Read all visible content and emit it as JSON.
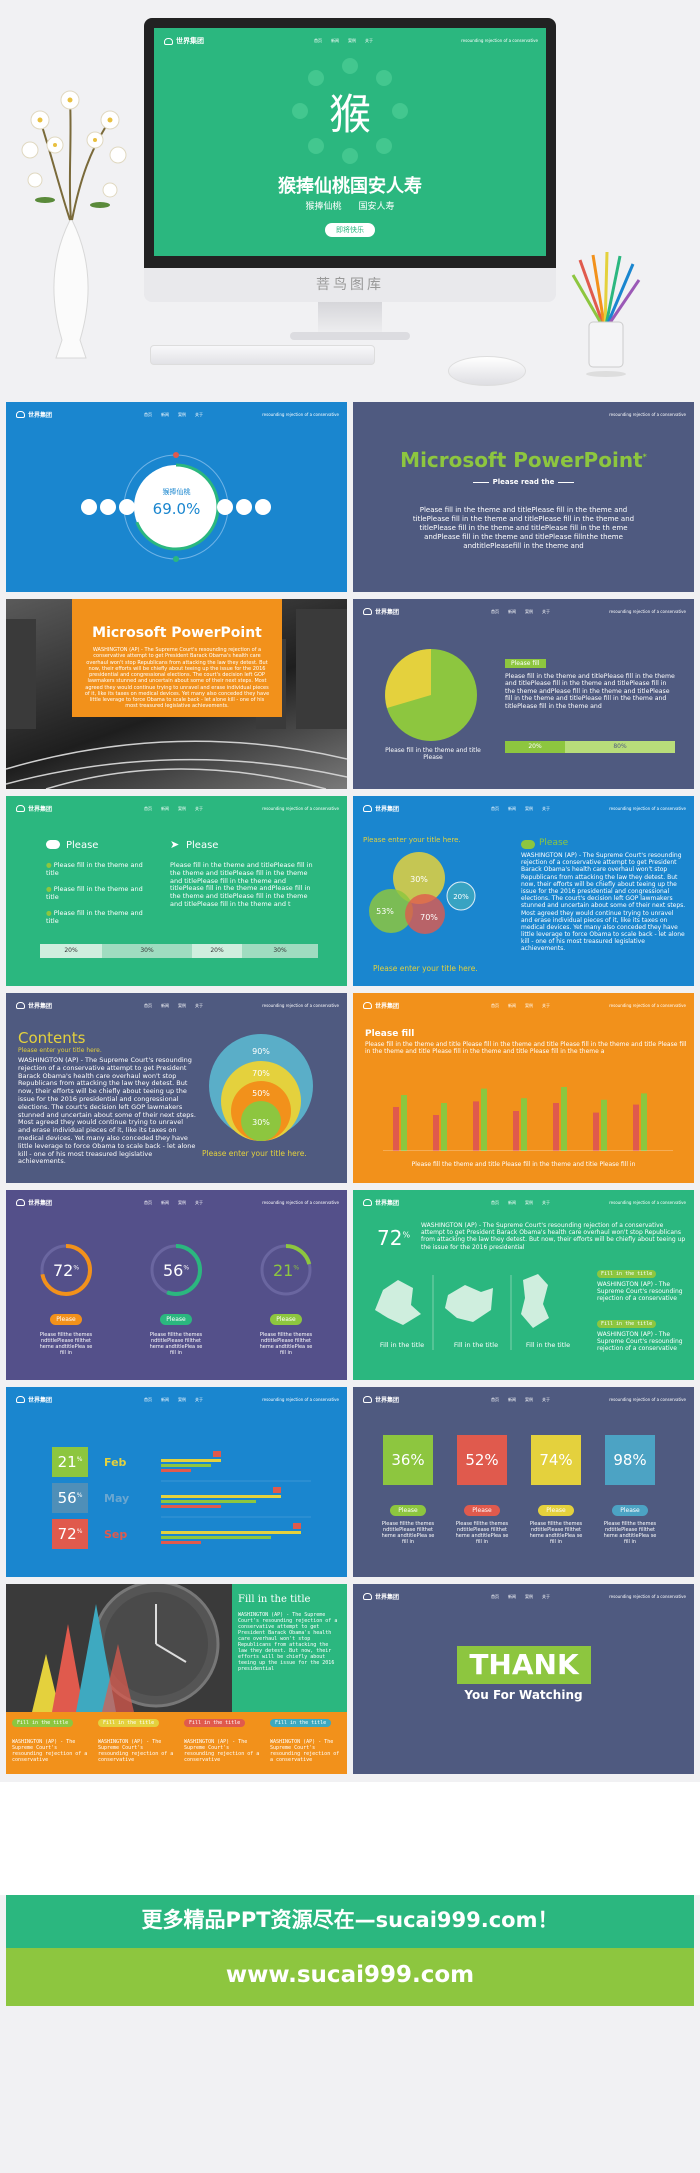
{
  "colors": {
    "green": "#2bb77f",
    "blue": "#1a86cf",
    "slate": "#4f5a80",
    "orange": "#f2911b",
    "lime": "#8dc63f",
    "yellow": "#e4d13d",
    "red": "#e05a4d",
    "teal": "#3ea9a0"
  },
  "common": {
    "logo": "世界集团",
    "links": [
      "首页",
      "新闻",
      "案例",
      "关于"
    ],
    "tagline": "resounding rejection of a conservative"
  },
  "hero": {
    "char": "猴",
    "title": "猴捧仙桃国安人寿",
    "sub1": "猴捧仙桃",
    "sub2": "国安人寿",
    "button": "即将快乐",
    "brand": "菩鸟图库",
    "icons": [
      "leaf-icon",
      "fruit-icon",
      "flower-icon",
      "ribbon-icon",
      "sun-icon",
      "cloud-icon",
      "peach-icon",
      "lantern-icon"
    ]
  },
  "s1": {
    "label": "猴捧仙桃",
    "value": "69.0%",
    "icons": [
      "cart-icon",
      "car-icon",
      "card-icon",
      "phone-icon",
      "umbrella-icon",
      "user-icon",
      "camera-icon",
      "gift-icon"
    ]
  },
  "s2": {
    "title": "Microsoft PowerPoint",
    "sup": "*",
    "sub": "Please read the",
    "body": "Please fill in the theme and titlePlease fill in the theme and titlePlease fill in the theme and titlePlease fill in the theme and titlePlease fill in the theme and titlePlease fill in the th eme andPlease fill in the theme and titlePlease fillnthe theme andtitlePleasefill in the theme and"
  },
  "s3": {
    "title": "Microsoft PowerPoint",
    "body": "WASHINGTON (AP) - The Supreme Court's resounding rejection of a conservative attempt to get President Barack Obama's health care overhaul won't stop Republicans from attacking the law they detest. But now, their efforts will be chiefly about teeing up the issue for the 2016 presidential and congressional elections. The court's decision left GOP lawmakers stunned and uncertain about some of their next steps. Most agreed they would continue trying to unravel and erase individual pieces of it, like its taxes on medical devices. Yet many also conceded they have little leverage to force Obama to scale back - let alone kill - one of his most treasured legislative achievements."
  },
  "s4": {
    "tag": "Please fill",
    "body": "Please fill in the theme and titlePlease fill in the theme and titlePlease fill in the theme and titlePlease fill in the theme andPlease fill in the theme and titlePlease fill in the theme and titlePlease fill in the theme and titlePlease fill in the theme and",
    "caption": "Please fill in the theme and title Please",
    "bars": [
      "20%",
      "80%"
    ]
  },
  "s5": {
    "h1": "Please",
    "h2": "Please",
    "items": [
      "Please fill in the theme and title",
      "Please fill in the theme and title",
      "Please fill in the theme and title"
    ],
    "body": "Please fill in the theme and titlePlease fill in the theme and titlePlease fill in the theme and titlePlease fill in the theme and titlePlease fill in the theme andPlease fill in the theme and titlePlease fill in the theme and titlePlease fill in the theme and t",
    "bars": [
      "20%",
      "30%",
      "20%",
      "30%"
    ]
  },
  "s6": {
    "h1": "Please enter your title here.",
    "h2": "Please",
    "circles": [
      "30%",
      "20%",
      "53%",
      "70%"
    ],
    "foot": "Please enter your title here.",
    "body": "WASHINGTON (AP) - The Supreme Court's resounding rejection of a conservative attempt to get President Barack Obama's health care overhaul won't stop Republicans from attacking the law they detest. But now, their efforts will be chiefly about teeing up the issue for the 2016 presidential and congressional elections. The court's decision left GOP lawmakers stunned and uncertain about some of their next steps. Most agreed they would continue trying to unravel and erase individual pieces of it, like its taxes on medical devices. Yet many also conceded they have little leverage to force Obama to scale back - let alone kill - one of his most treasured legislative achievements."
  },
  "s7": {
    "title": "Contents",
    "sub": "Please enter your title here.",
    "body": "WASHINGTON (AP) - The Supreme Court's resounding rejection of a conservative attempt to get President Barack Obama's health care overhaul won't stop Republicans from attacking the law they detest. But now, their efforts will be chiefly about teeing up the issue for the 2016 presidential and congressional elections. The court's decision left GOP lawmakers stunned and uncertain about some of their next steps. Most agreed they would continue trying to unravel and erase individual pieces of it, like its taxes on medical devices. Yet many also conceded they have little leverage to force Obama to scale back - let alone kill - one of his most treasured legislative achievements.",
    "rings": [
      "90%",
      "70%",
      "50%",
      "30%"
    ],
    "foot": "Please enter your title here."
  },
  "s8": {
    "title": "Please fill",
    "body": "Please fill in the theme and title Please fill in the theme and title Please fill in the theme and title Please fill in the theme and title Please fill in the theme and title Please fill in the theme a",
    "foot": "Please fill the theme and title Please fill in the theme and titie Please fill in",
    "bars": [
      [
        0.55,
        0.7
      ],
      [
        0.45,
        0.6
      ],
      [
        0.62,
        0.78
      ],
      [
        0.5,
        0.66
      ],
      [
        0.6,
        0.8
      ],
      [
        0.48,
        0.64
      ],
      [
        0.58,
        0.72
      ]
    ]
  },
  "s9": {
    "gauges": [
      {
        "v": "72",
        "p": 0.72,
        "c": "#f2911b"
      },
      {
        "v": "56",
        "p": 0.56,
        "c": "#2bb77f"
      },
      {
        "v": "21",
        "p": 0.21,
        "c": "#8dc63f"
      }
    ],
    "sup": "%",
    "btn": "Please",
    "cap": "Please fillthe themes ndtitlePlease fillthet heme andtitlePlea se fill in"
  },
  "s10": {
    "big": "72",
    "sup": "%",
    "body": "WASHINGTON (AP) - The Supreme Court's resounding rejection of a conservative attempt to get President Barack Obama's health care overhaul won't stop Republicans from attacking the law they detest. But now, their efforts will be chiefly about teeing up the issue for the 2016 presidential",
    "maps": [
      "Fill in the title",
      "Fill in the title",
      "Fill in the title"
    ],
    "tag": "Fill in the title",
    "side": "WASHINGTON (AP) - The Supreme Court's resounding rejection of a conservative"
  },
  "s11": {
    "rows": [
      {
        "v": "21",
        "l": "Feb",
        "c": "#8dc63f"
      },
      {
        "v": "56",
        "l": "May",
        "c": "#4f8fb8"
      },
      {
        "v": "72",
        "l": "Sep",
        "c": "#e05a4d"
      }
    ],
    "sup": "%"
  },
  "s12": {
    "vals": [
      "36%",
      "52%",
      "74%",
      "98%"
    ],
    "btn": "Please",
    "cap": "Please fillthe themes ndtitlePlease fillthet heme andtitlePlea se fill in"
  },
  "s13": {
    "title": "Fill in the title",
    "body": "WASHINGTON (AP) - The Supreme Court's resounding rejection of a conservative attempt to get President Barack Obama's health care overhaul won't stop Republicans from attacking the law they detest. But now, their efforts will be chiefly about teeing up the issue for the 2016 presidential",
    "tag": "Fill in the title",
    "cap": "WASHINGTON (AP) - The Supreme Court's resounding rejection of a conservative"
  },
  "s14": {
    "thank": "THANK",
    "sub": "You For Watching"
  },
  "footer": {
    "line1": "更多精品PPT资源尽在—sucai999.com！",
    "line2": "www.sucai999.com"
  }
}
